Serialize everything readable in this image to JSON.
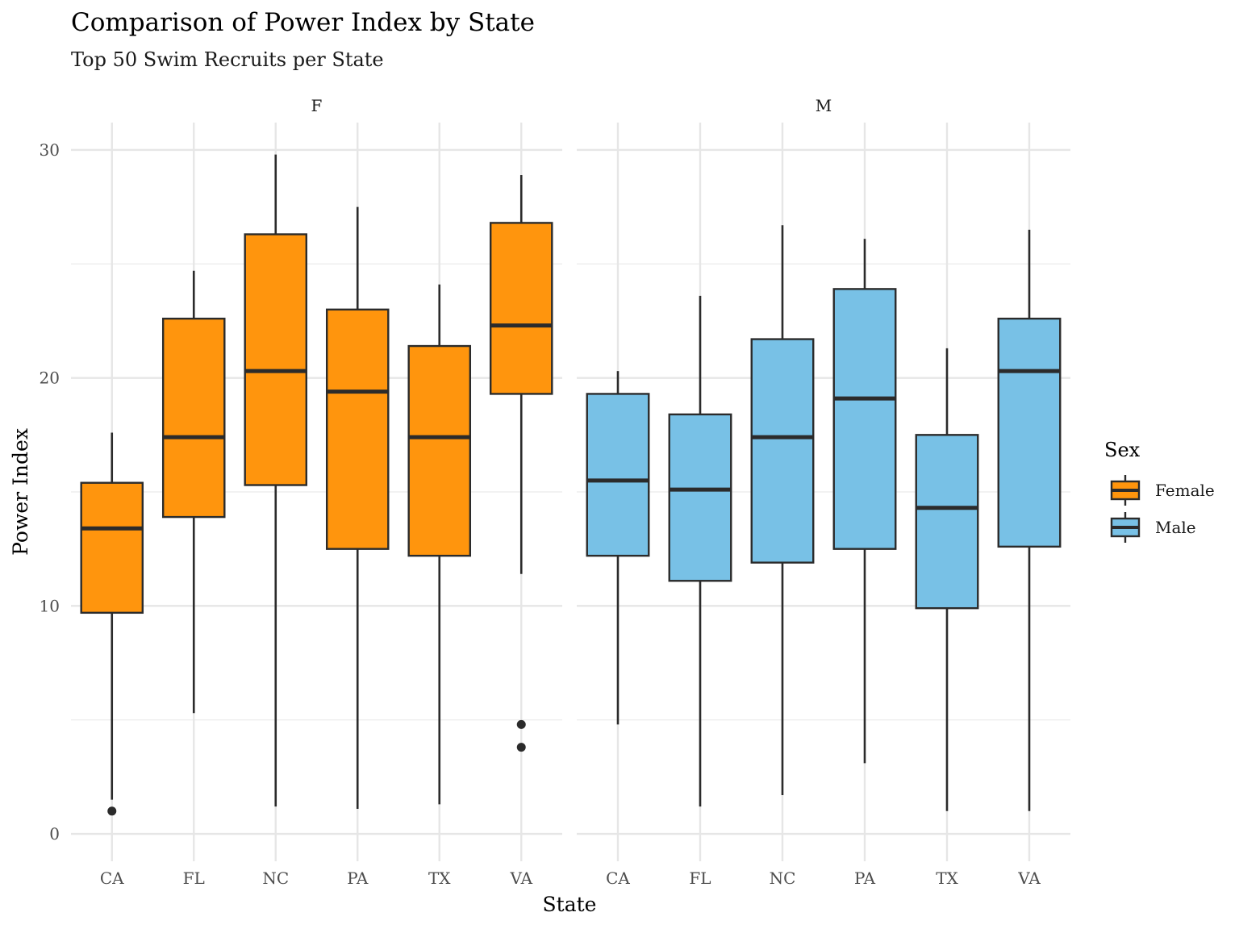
{
  "chart_data": {
    "type": "boxplot",
    "title": "Comparison of Power Index by State",
    "subtitle": "Top 50 Swim Recruits per State",
    "xlabel": "State",
    "ylabel": "Power Index",
    "ylim": [
      -1.2,
      31.2
    ],
    "yticks": [
      0,
      10,
      20,
      30
    ],
    "categories": [
      "CA",
      "FL",
      "NC",
      "PA",
      "TX",
      "VA"
    ],
    "facets": [
      {
        "label": "F",
        "series": "Female",
        "boxes": [
          {
            "x": "CA",
            "whisker_low": 1.5,
            "q1": 9.7,
            "median": 13.4,
            "q3": 15.4,
            "whisker_high": 17.6,
            "outliers": [
              1.0
            ]
          },
          {
            "x": "FL",
            "whisker_low": 5.3,
            "q1": 13.9,
            "median": 17.4,
            "q3": 22.6,
            "whisker_high": 24.7,
            "outliers": []
          },
          {
            "x": "NC",
            "whisker_low": 1.2,
            "q1": 15.3,
            "median": 20.3,
            "q3": 26.3,
            "whisker_high": 29.8,
            "outliers": []
          },
          {
            "x": "PA",
            "whisker_low": 1.1,
            "q1": 12.5,
            "median": 19.4,
            "q3": 23.0,
            "whisker_high": 27.5,
            "outliers": []
          },
          {
            "x": "TX",
            "whisker_low": 1.3,
            "q1": 12.2,
            "median": 17.4,
            "q3": 21.4,
            "whisker_high": 24.1,
            "outliers": []
          },
          {
            "x": "VA",
            "whisker_low": 11.4,
            "q1": 19.3,
            "median": 22.3,
            "q3": 26.8,
            "whisker_high": 28.9,
            "outliers": [
              4.8,
              3.8
            ]
          }
        ]
      },
      {
        "label": "M",
        "series": "Male",
        "boxes": [
          {
            "x": "CA",
            "whisker_low": 4.8,
            "q1": 12.2,
            "median": 15.5,
            "q3": 19.3,
            "whisker_high": 20.3,
            "outliers": []
          },
          {
            "x": "FL",
            "whisker_low": 1.2,
            "q1": 11.1,
            "median": 15.1,
            "q3": 18.4,
            "whisker_high": 23.6,
            "outliers": []
          },
          {
            "x": "NC",
            "whisker_low": 1.7,
            "q1": 11.9,
            "median": 17.4,
            "q3": 21.7,
            "whisker_high": 26.7,
            "outliers": []
          },
          {
            "x": "PA",
            "whisker_low": 3.1,
            "q1": 12.5,
            "median": 19.1,
            "q3": 23.9,
            "whisker_high": 26.1,
            "outliers": []
          },
          {
            "x": "TX",
            "whisker_low": 1.0,
            "q1": 9.9,
            "median": 14.3,
            "q3": 17.5,
            "whisker_high": 21.3,
            "outliers": []
          },
          {
            "x": "VA",
            "whisker_low": 1.0,
            "q1": 12.6,
            "median": 20.3,
            "q3": 22.6,
            "whisker_high": 26.5,
            "outliers": []
          }
        ]
      }
    ],
    "legend": {
      "title": "Sex",
      "position": "right",
      "entries": [
        {
          "label": "Female",
          "color": "#ff950d"
        },
        {
          "label": "Male",
          "color": "#78c1e6"
        }
      ]
    },
    "grid": true
  }
}
